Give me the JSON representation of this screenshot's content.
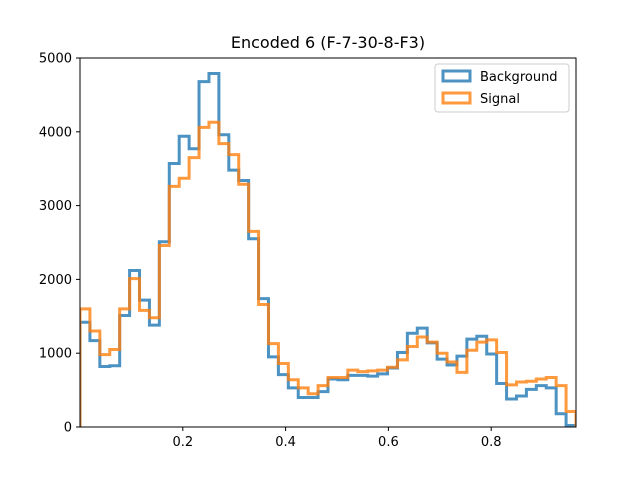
{
  "chart_data": {
    "type": "histogram-step",
    "title": "Encoded 6 (F-7-30-8-F3)",
    "xlabel": "",
    "ylabel": "",
    "xlim": [
      0,
      0.965
    ],
    "ylim": [
      0,
      5000
    ],
    "bin_width": 0.0193,
    "x_ticks": [
      {
        "value": 0.2,
        "label": "0.2"
      },
      {
        "value": 0.4,
        "label": "0.4"
      },
      {
        "value": 0.6,
        "label": "0.6"
      },
      {
        "value": 0.8,
        "label": "0.8"
      }
    ],
    "y_ticks": [
      {
        "value": 0,
        "label": "0"
      },
      {
        "value": 1000,
        "label": "1000"
      },
      {
        "value": 2000,
        "label": "2000"
      },
      {
        "value": 3000,
        "label": "3000"
      },
      {
        "value": 4000,
        "label": "4000"
      },
      {
        "value": 5000,
        "label": "5000"
      }
    ],
    "grid": false,
    "legend_position": "top-right",
    "series": [
      {
        "name": "Background",
        "color": "#1f77b4",
        "values": [
          1420,
          1170,
          820,
          830,
          1510,
          2120,
          1720,
          1380,
          2510,
          3570,
          3940,
          3770,
          4680,
          4790,
          3960,
          3480,
          3340,
          2550,
          1740,
          950,
          710,
          530,
          400,
          400,
          480,
          650,
          640,
          700,
          700,
          690,
          720,
          800,
          1010,
          1270,
          1340,
          1140,
          920,
          840,
          960,
          1190,
          1230,
          990,
          590,
          380,
          420,
          510,
          560,
          530,
          180,
          20
        ]
      },
      {
        "name": "Signal",
        "color": "#ff7f0e",
        "values": [
          1600,
          1300,
          980,
          1050,
          1600,
          2010,
          1580,
          1480,
          2460,
          3260,
          3370,
          3650,
          4060,
          4130,
          3840,
          3690,
          3290,
          2650,
          1660,
          1130,
          860,
          640,
          530,
          450,
          560,
          670,
          670,
          770,
          750,
          760,
          770,
          810,
          910,
          1090,
          1220,
          1150,
          1000,
          880,
          740,
          1040,
          1150,
          1180,
          1010,
          570,
          610,
          620,
          650,
          670,
          560,
          210
        ]
      }
    ]
  }
}
